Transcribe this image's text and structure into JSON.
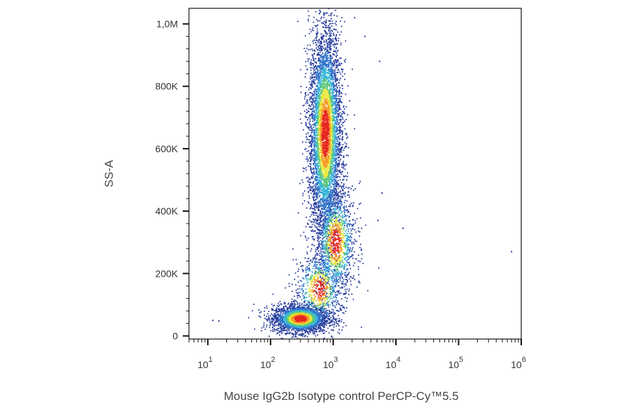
{
  "chart_data": {
    "type": "scatter",
    "style": "density-dot-plot",
    "xlabel": "Mouse IgG2b Isotype control PerCP-Cy™5.5",
    "ylabel": "SS-A",
    "x_scale": "log",
    "xlim": [
      5,
      1000000
    ],
    "ylim": [
      -10000,
      1050000
    ],
    "x_ticks": [
      {
        "value": 10,
        "base": "10",
        "exp": "1"
      },
      {
        "value": 100,
        "base": "10",
        "exp": "2"
      },
      {
        "value": 1000,
        "base": "10",
        "exp": "3"
      },
      {
        "value": 10000,
        "base": "10",
        "exp": "4"
      },
      {
        "value": 100000,
        "base": "10",
        "exp": "5"
      },
      {
        "value": 1000000,
        "base": "10",
        "exp": "6"
      }
    ],
    "y_ticks": [
      {
        "value": 0,
        "label": "0"
      },
      {
        "value": 200000,
        "label": "200K"
      },
      {
        "value": 400000,
        "label": "400K"
      },
      {
        "value": 600000,
        "label": "600K"
      },
      {
        "value": 800000,
        "label": "800K"
      },
      {
        "value": 1000000,
        "label": "1,0M"
      }
    ],
    "populations": [
      {
        "x_center": 300,
        "y_center": 55000,
        "x_spread_decades": 0.22,
        "y_spread": 22000,
        "n": 2600
      },
      {
        "x_center": 750,
        "y_center": 650000,
        "x_spread_decades": 0.13,
        "y_spread": 170000,
        "n": 5200
      },
      {
        "x_center": 1100,
        "y_center": 300000,
        "x_spread_decades": 0.16,
        "y_spread": 90000,
        "n": 1300
      },
      {
        "x_center": 600,
        "y_center": 150000,
        "x_spread_decades": 0.2,
        "y_spread": 60000,
        "n": 700
      }
    ],
    "outliers": [
      {
        "x": 12,
        "y": 50000
      },
      {
        "x": 15,
        "y": 48000
      },
      {
        "x": 2200,
        "y": 1020000
      },
      {
        "x": 5500,
        "y": 880000
      },
      {
        "x": 6000,
        "y": 458000
      },
      {
        "x": 5200,
        "y": 370000
      },
      {
        "x": 13000,
        "y": 345000
      },
      {
        "x": 700000,
        "y": 270000
      },
      {
        "x": 2800,
        "y": 275000
      },
      {
        "x": 3200,
        "y": 960000
      }
    ],
    "colormap": [
      "#2a3f9e",
      "#2f73c9",
      "#37b6d9",
      "#5cc77a",
      "#e7e83a",
      "#f59b2b",
      "#e8261f"
    ],
    "grid": false,
    "legend": "none"
  }
}
